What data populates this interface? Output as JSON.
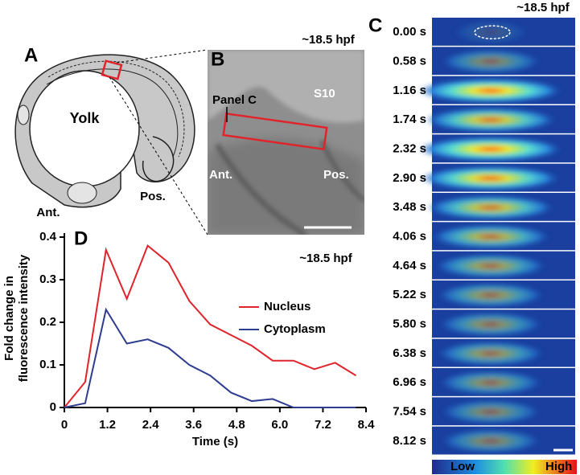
{
  "panel_labels": [
    "A",
    "B",
    "C",
    "D"
  ],
  "panel_a": {
    "yolk": "Yolk",
    "anterior": "Ant.",
    "posterior": "Pos."
  },
  "panel_b": {
    "stage": "~18.5 hpf",
    "somite": "S10",
    "region": "Panel C",
    "anterior": "Ant.",
    "posterior": "Pos."
  },
  "panel_c": {
    "stage": "~18.5 hpf",
    "times": [
      "0.00 s",
      "0.58 s",
      "1.16 s",
      "1.74 s",
      "2.32 s",
      "2.90 s",
      "3.48 s",
      "4.06 s",
      "4.64 s",
      "5.22 s",
      "5.80 s",
      "6.38 s",
      "6.96 s",
      "7.54 s",
      "8.12 s"
    ],
    "colorbar": {
      "low": "Low",
      "high": "High"
    }
  },
  "chart_data": {
    "type": "line",
    "annotation": "~18.5 hpf",
    "x_label": "Time (s)",
    "y_label": [
      "Fold change in",
      "fluorescence intensity"
    ],
    "x": [
      0,
      0.58,
      1.16,
      1.74,
      2.32,
      2.9,
      3.48,
      4.06,
      4.64,
      5.22,
      5.8,
      6.38,
      6.96,
      7.54,
      8.12
    ],
    "series": [
      {
        "name": "Nucleus",
        "color": "#e0242b",
        "values": [
          0,
          0.06,
          0.37,
          0.255,
          0.38,
          0.34,
          0.25,
          0.195,
          0.17,
          0.145,
          0.11,
          0.11,
          0.09,
          0.105,
          0.075
        ]
      },
      {
        "name": "Cytoplasm",
        "color": "#2e3d8f",
        "values": [
          0,
          0.01,
          0.23,
          0.15,
          0.16,
          0.14,
          0.1,
          0.075,
          0.035,
          0.015,
          0.02,
          0,
          0,
          0,
          0
        ]
      }
    ],
    "xlim": [
      0,
      8.4
    ],
    "ylim": [
      0,
      0.4
    ],
    "xticks": [
      0,
      1.2,
      2.4,
      3.6,
      4.8,
      {
        "value": 6,
        "label": "6.0"
      },
      7.2,
      8.4
    ],
    "yticks": [
      0,
      0.1,
      0.2,
      0.3,
      0.4
    ]
  }
}
